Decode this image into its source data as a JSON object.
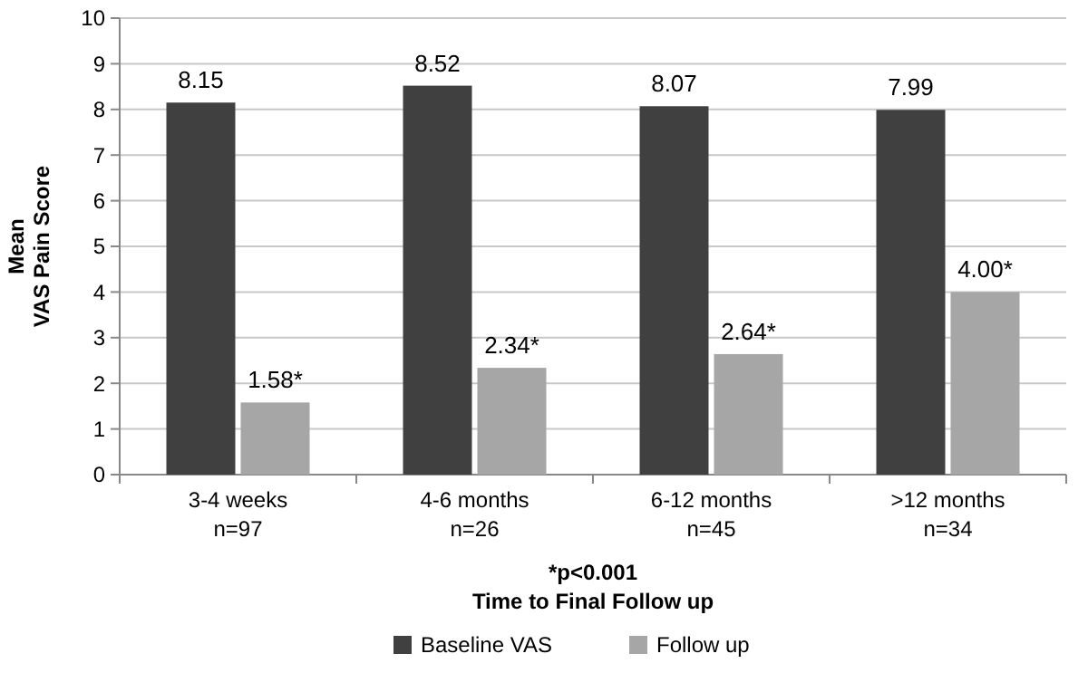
{
  "chart_data": {
    "type": "bar",
    "ylabel": "Mean\nVAS Pain Score",
    "xlabel": "Time to Final Follow up",
    "categories": [
      "3-4 weeks\nn=97",
      "4-6 months\nn=26",
      "6-12 months\nn=45",
      ">12 months\nn=34"
    ],
    "series": [
      {
        "name": "Baseline VAS",
        "color": "#404040",
        "values": [
          8.15,
          8.52,
          8.07,
          7.99
        ],
        "value_labels": [
          "8.15",
          "8.52",
          "8.07",
          "7.99"
        ]
      },
      {
        "name": "Follow up",
        "color": "#a6a6a6",
        "values": [
          1.58,
          2.34,
          2.64,
          4.0
        ],
        "value_labels": [
          "1.58*",
          "2.34*",
          "2.64*",
          "4.00*"
        ]
      }
    ],
    "ylim": [
      0,
      10
    ],
    "yticks": [
      0,
      1,
      2,
      3,
      4,
      5,
      6,
      7,
      8,
      9,
      10
    ],
    "grid": "y",
    "legend": "bottom",
    "annotations": [
      "*p<0.001"
    ]
  }
}
